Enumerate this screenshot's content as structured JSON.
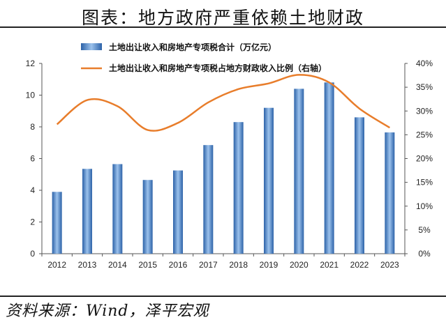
{
  "header": {
    "title": "图表：地方政府严重依赖土地财政"
  },
  "footer": {
    "source": "资料来源：Wind，泽平宏观"
  },
  "chart_data": {
    "type": "bar",
    "categories": [
      "2012",
      "2013",
      "2014",
      "2015",
      "2016",
      "2017",
      "2018",
      "2019",
      "2020",
      "2021",
      "2022",
      "2023"
    ],
    "series": [
      {
        "name": "土地出让收入和房地产专项税合计（万亿元）",
        "type": "bar",
        "axis": "left",
        "values": [
          3.9,
          5.35,
          5.65,
          4.65,
          5.25,
          6.85,
          8.3,
          9.2,
          10.4,
          10.8,
          8.6,
          7.65
        ]
      },
      {
        "name": "土地出让收入和房地产专项税占地方财政收入比例（右轴）",
        "type": "line",
        "axis": "right",
        "values": [
          27.2,
          32.3,
          31.0,
          26.0,
          27.5,
          31.8,
          34.6,
          35.8,
          37.6,
          36.0,
          30.5,
          26.5
        ]
      }
    ],
    "y_left": {
      "min": 0,
      "max": 12,
      "ticks": [
        0,
        2,
        4,
        6,
        8,
        10,
        12
      ]
    },
    "y_right": {
      "min": 0,
      "max": 40,
      "ticks": [
        "0%",
        "5%",
        "10%",
        "15%",
        "20%",
        "25%",
        "30%",
        "35%",
        "40%"
      ]
    },
    "legend_position": "top-left",
    "grid": false,
    "colors": {
      "bar": "#3a78c2",
      "bar_light": "#a9c9ee",
      "line": "#e87d2b"
    }
  }
}
